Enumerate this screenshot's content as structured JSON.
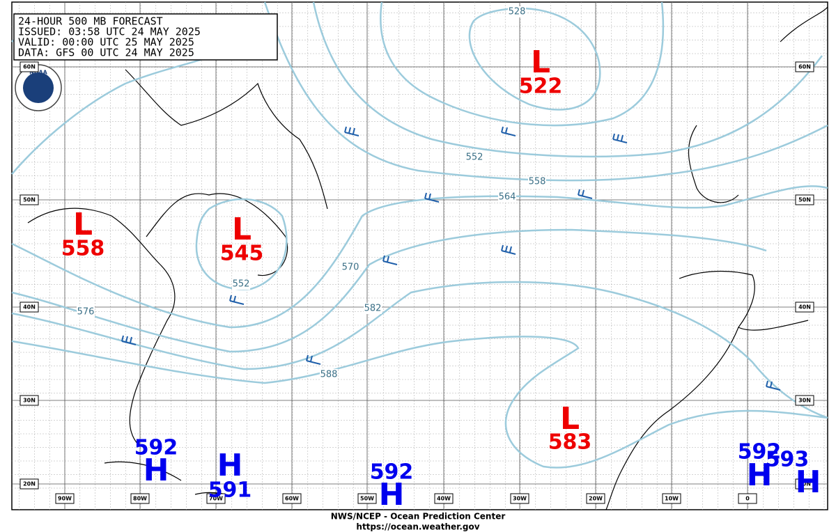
{
  "header": {
    "lines": [
      "24-HOUR 500 MB FORECAST",
      "ISSUED: 03:58 UTC 24 MAY 2025",
      "VALID:  00:00 UTC 25 MAY 2025",
      "DATA:   GFS 00 UTC 24 MAY 2025"
    ]
  },
  "logo": "NOAA",
  "lat_labels": [
    "60N",
    "50N",
    "40N",
    "30N",
    "20N"
  ],
  "lon_labels": [
    "90W",
    "80W",
    "70W",
    "60W",
    "50W",
    "40W",
    "30W",
    "20W",
    "10W",
    "0"
  ],
  "contour_labels": [
    "528",
    "552",
    "558",
    "564",
    "552",
    "570",
    "576",
    "582",
    "588"
  ],
  "systems": [
    {
      "type": "L",
      "value": "522"
    },
    {
      "type": "L",
      "value": "558"
    },
    {
      "type": "L",
      "value": "545"
    },
    {
      "type": "L",
      "value": "583"
    },
    {
      "type": "H",
      "value": "592"
    },
    {
      "type": "H",
      "value": "591"
    },
    {
      "type": "H",
      "value": "592"
    },
    {
      "type": "H",
      "value": "592"
    },
    {
      "type": "H",
      "value": "593"
    }
  ],
  "footer": [
    "NWS/NCEP - Ocean Prediction Center",
    "https://ocean.weather.gov"
  ]
}
